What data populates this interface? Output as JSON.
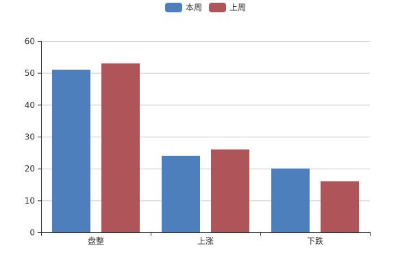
{
  "chart_data": {
    "type": "bar",
    "categories": [
      "盘整",
      "上涨",
      "下跌"
    ],
    "series": [
      {
        "name": "本周",
        "values": [
          51,
          24,
          20
        ],
        "color": "#4d7fbc"
      },
      {
        "name": "上周",
        "values": [
          53,
          26,
          16
        ],
        "color": "#af5459"
      }
    ],
    "ylim": [
      0,
      60
    ],
    "yticks": [
      0,
      10,
      20,
      30,
      40,
      50,
      60
    ],
    "grid": true,
    "legend": "top-center",
    "title": "",
    "xlabel": "",
    "ylabel": ""
  }
}
